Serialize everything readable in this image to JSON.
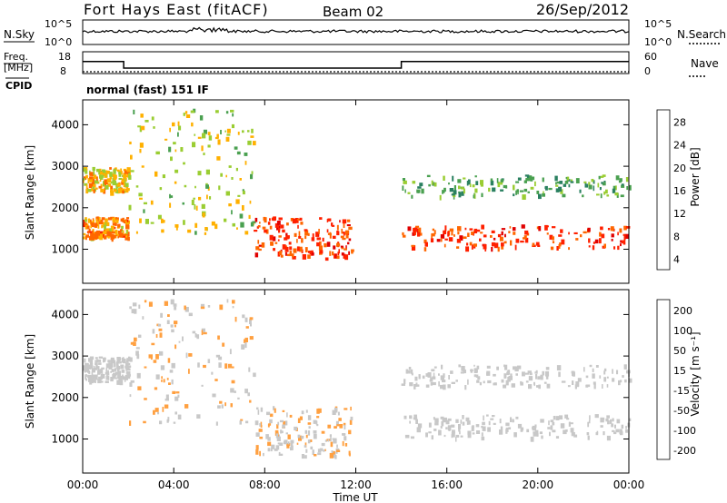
{
  "header": {
    "station": "Fort Hays East (fitACF)",
    "beam": "Beam 02",
    "date": "26/Sep/2012"
  },
  "noise_panel": {
    "left_label": "N.Sky",
    "right_label": "N.Search",
    "left_ticks": [
      "10^5",
      "10^0"
    ],
    "right_ticks": [
      "10^5",
      "10^0"
    ]
  },
  "freq_panel": {
    "left_label_1": "Freq.",
    "left_label_2": "[MHz]",
    "right_label": "Nave",
    "cpid_label": "CPID",
    "left_ticks": [
      "18",
      "8"
    ],
    "right_ticks": [
      "60",
      "0"
    ],
    "freq_steps": [
      {
        "from": 0,
        "to": 1.8,
        "value": 13.5
      },
      {
        "from": 1.8,
        "to": 14.0,
        "value": 10.5
      },
      {
        "from": 14.0,
        "to": 24,
        "value": 13.5
      }
    ],
    "nave_level": 5
  },
  "cpid_text": "normal (fast) 151 IF",
  "panels": {
    "power": {
      "ylabel": "Slant Range [km]",
      "cbar_label": "Power [dB]",
      "cbar_ticks": [
        "28",
        "24",
        "20",
        "16",
        "12",
        "8",
        "4"
      ]
    },
    "velocity": {
      "ylabel": "Slant Range [km]",
      "cbar_label": "Velocity [m s⁻¹]",
      "cbar_ticks": [
        "200",
        "100",
        "50",
        "15",
        "-15",
        "-50",
        "-100",
        "-200"
      ]
    }
  },
  "xaxis": {
    "label": "Time UT",
    "ticks": [
      "00:00",
      "04:00",
      "08:00",
      "12:00",
      "16:00",
      "20:00",
      "00:00"
    ]
  },
  "colors": {
    "power_scale": [
      "#0000ff",
      "#1a3ca8",
      "#2a8060",
      "#4aa050",
      "#9acd32",
      "#ffb000",
      "#ff6600",
      "#ff2000",
      "#e00000"
    ],
    "velocity_scale": [
      "#1040c0",
      "#40a040",
      "#80d040",
      "#c8c8c8",
      "#c8c8c8",
      "#ffa040",
      "#ff6000",
      "#ff0000"
    ]
  },
  "chart_data": [
    {
      "type": "heatmap",
      "title": "Power",
      "ylabel": "Slant Range [km]",
      "xlabel": "Time UT",
      "xlim": [
        0,
        24
      ],
      "ylim": [
        180,
        4600
      ],
      "yticks": [
        1000,
        2000,
        3000,
        4000
      ],
      "colorbar": {
        "label": "Power [dB]",
        "range": [
          0,
          30
        ],
        "ticks": [
          4,
          8,
          12,
          16,
          20,
          24,
          28
        ]
      },
      "features": [
        {
          "name": "early bands",
          "t": [
            0.0,
            2.0
          ],
          "range_km": [
            2400,
            3000
          ],
          "value": 18
        },
        {
          "name": "early low band",
          "t": [
            0.0,
            2.0
          ],
          "range_km": [
            1300,
            1800
          ],
          "value": 20
        },
        {
          "name": "morning diagonal",
          "t": [
            2.0,
            7.5
          ],
          "range_km": [
            1400,
            4400
          ],
          "value": 16
        },
        {
          "name": "mid-day blob",
          "t": [
            7.5,
            11.8
          ],
          "range_km": [
            800,
            1800
          ],
          "value": 24
        },
        {
          "name": "afternoon low band",
          "t": [
            14.0,
            24.0
          ],
          "range_km": [
            1050,
            1600
          ],
          "value": 24
        },
        {
          "name": "afternoon high band",
          "t": [
            14.0,
            24.0
          ],
          "range_km": [
            2300,
            2800
          ],
          "value": 12
        }
      ]
    },
    {
      "type": "heatmap",
      "title": "Velocity",
      "ylabel": "Slant Range [km]",
      "xlabel": "Time UT",
      "xlim": [
        0,
        24
      ],
      "ylim": [
        180,
        4600
      ],
      "yticks": [
        1000,
        2000,
        3000,
        4000
      ],
      "colorbar": {
        "label": "Velocity [m s-1]",
        "range": [
          -250,
          250
        ],
        "ticks": [
          200,
          100,
          50,
          15,
          -15,
          -50,
          -100,
          -200
        ]
      },
      "features": [
        {
          "name": "early bands",
          "t": [
            0.0,
            2.0
          ],
          "range_km": [
            2400,
            3000
          ],
          "value": 0
        },
        {
          "name": "morning echoes",
          "t": [
            2.0,
            7.5
          ],
          "range_km": [
            1400,
            4400
          ],
          "value": 60
        },
        {
          "name": "mid-day blob",
          "t": [
            7.5,
            11.8
          ],
          "range_km": [
            600,
            1800
          ],
          "value": 50
        },
        {
          "name": "afternoon low band",
          "t": [
            14.0,
            24.0
          ],
          "range_km": [
            1050,
            1600
          ],
          "value": 0
        },
        {
          "name": "afternoon high band",
          "t": [
            14.0,
            24.0
          ],
          "range_km": [
            2300,
            2800
          ],
          "value": 0
        }
      ]
    }
  ]
}
